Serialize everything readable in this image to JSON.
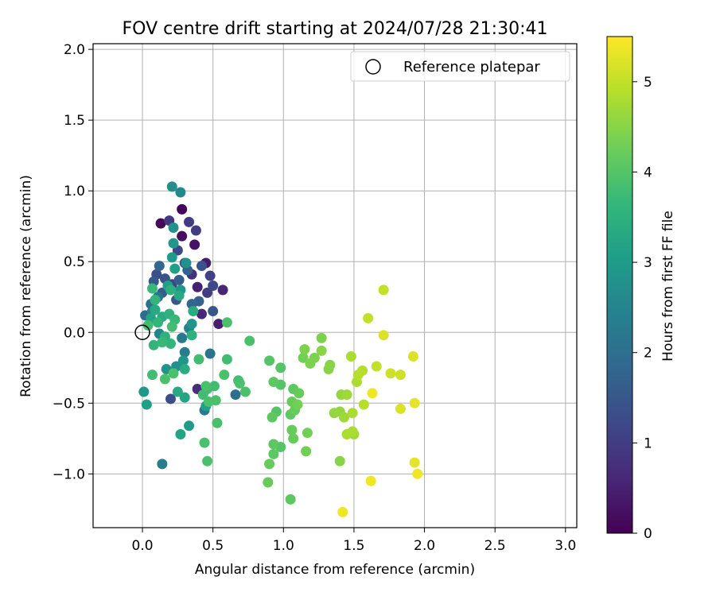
{
  "chart_data": {
    "type": "scatter",
    "title": "FOV centre drift starting at 2024/07/28 21:30:41",
    "xlabel": "Angular distance from reference (arcmin)",
    "ylabel": "Rotation from reference (arcmin)",
    "xlim": [
      -0.35,
      3.08
    ],
    "ylim": [
      -1.38,
      2.04
    ],
    "xticks": [
      0.0,
      0.5,
      1.0,
      1.5,
      2.0,
      2.5,
      3.0
    ],
    "xtick_labels": [
      "0.0",
      "0.5",
      "1.0",
      "1.5",
      "2.0",
      "2.5",
      "3.0"
    ],
    "yticks": [
      -1.0,
      -0.5,
      0.0,
      0.5,
      1.0,
      1.5,
      2.0
    ],
    "ytick_labels": [
      "−1.0",
      "−0.5",
      "0.0",
      "0.5",
      "1.0",
      "1.5",
      "2.0"
    ],
    "grid": true,
    "legend": {
      "position": "top-right",
      "entries": [
        {
          "label": "Reference platepar",
          "marker": "open-circle"
        }
      ]
    },
    "reference_point": {
      "x": 0.0,
      "y": 0.0
    },
    "colorbar": {
      "label": "Hours from first FF file",
      "colormap": "viridis",
      "range": [
        0,
        5.5
      ],
      "ticks": [
        0,
        1,
        2,
        3,
        4,
        5
      ],
      "tick_labels": [
        "0",
        "1",
        "2",
        "3",
        "4",
        "5"
      ],
      "colors": [
        "#440154",
        "#482878",
        "#3e4989",
        "#31688e",
        "#26828e",
        "#1f9e89",
        "#35b779",
        "#6ece58",
        "#b5de2b",
        "#fde725"
      ]
    },
    "points": [
      {
        "x": 0.28,
        "y": 0.87,
        "h": 0.05
      },
      {
        "x": 0.13,
        "y": 0.77,
        "h": 0.1
      },
      {
        "x": 0.28,
        "y": 0.68,
        "h": 0.2
      },
      {
        "x": 0.37,
        "y": 0.62,
        "h": 0.3
      },
      {
        "x": 0.45,
        "y": 0.49,
        "h": 0.4
      },
      {
        "x": 0.39,
        "y": 0.32,
        "h": 0.5
      },
      {
        "x": 0.57,
        "y": 0.3,
        "h": 0.6
      },
      {
        "x": 0.54,
        "y": 0.06,
        "h": 0.45
      },
      {
        "x": 0.42,
        "y": 0.13,
        "h": 0.6
      },
      {
        "x": 0.39,
        "y": -0.4,
        "h": 0.7
      },
      {
        "x": 0.35,
        "y": 0.41,
        "h": 0.8
      },
      {
        "x": 0.19,
        "y": 0.79,
        "h": 0.9
      },
      {
        "x": 0.33,
        "y": 0.78,
        "h": 1.0
      },
      {
        "x": 0.38,
        "y": 0.72,
        "h": 1.0
      },
      {
        "x": 0.48,
        "y": 0.4,
        "h": 1.1
      },
      {
        "x": 0.5,
        "y": 0.33,
        "h": 1.2
      },
      {
        "x": 0.46,
        "y": 0.28,
        "h": 1.0
      },
      {
        "x": 0.2,
        "y": -0.47,
        "h": 1.3
      },
      {
        "x": 0.25,
        "y": 0.58,
        "h": 1.2
      },
      {
        "x": 0.3,
        "y": 0.49,
        "h": 1.3
      },
      {
        "x": 0.16,
        "y": 0.38,
        "h": 1.4
      },
      {
        "x": 0.21,
        "y": 0.34,
        "h": 1.1
      },
      {
        "x": 0.08,
        "y": 0.36,
        "h": 1.5
      },
      {
        "x": 0.1,
        "y": 0.41,
        "h": 1.3
      },
      {
        "x": 0.14,
        "y": 0.28,
        "h": 1.6
      },
      {
        "x": 0.24,
        "y": 0.23,
        "h": 1.5
      },
      {
        "x": 0.26,
        "y": 0.37,
        "h": 1.6
      },
      {
        "x": 0.32,
        "y": 0.44,
        "h": 1.7
      },
      {
        "x": 0.42,
        "y": 0.47,
        "h": 1.4
      },
      {
        "x": 0.35,
        "y": 0.2,
        "h": 1.8
      },
      {
        "x": 0.4,
        "y": 0.22,
        "h": 1.7
      },
      {
        "x": 0.5,
        "y": 0.15,
        "h": 1.5
      },
      {
        "x": 0.02,
        "y": 0.12,
        "h": 1.9
      },
      {
        "x": 0.06,
        "y": 0.2,
        "h": 2.0
      },
      {
        "x": 0.11,
        "y": 0.25,
        "h": 2.1
      },
      {
        "x": 0.12,
        "y": 0.47,
        "h": 1.8
      },
      {
        "x": 0.48,
        "y": -0.15,
        "h": 2.1
      },
      {
        "x": 0.44,
        "y": -0.55,
        "h": 2.2
      },
      {
        "x": 0.66,
        "y": -0.44,
        "h": 2.0
      },
      {
        "x": 0.14,
        "y": -0.93,
        "h": 2.3
      },
      {
        "x": 0.28,
        "y": -0.04,
        "h": 2.2
      },
      {
        "x": 0.33,
        "y": 0.03,
        "h": 2.4
      },
      {
        "x": 0.3,
        "y": -0.14,
        "h": 2.3
      },
      {
        "x": 0.07,
        "y": 0.15,
        "h": 2.4
      },
      {
        "x": 0.12,
        "y": -0.01,
        "h": 2.5
      },
      {
        "x": 0.27,
        "y": 0.99,
        "h": 2.6
      },
      {
        "x": 0.21,
        "y": 1.03,
        "h": 2.7
      },
      {
        "x": 0.22,
        "y": 0.74,
        "h": 2.8
      },
      {
        "x": 0.22,
        "y": 0.63,
        "h": 2.9
      },
      {
        "x": 0.31,
        "y": 0.49,
        "h": 2.75
      },
      {
        "x": 0.21,
        "y": 0.53,
        "h": 3.0
      },
      {
        "x": 0.23,
        "y": 0.45,
        "h": 3.1
      },
      {
        "x": 0.18,
        "y": 0.33,
        "h": 3.1
      },
      {
        "x": 0.27,
        "y": 0.3,
        "h": 2.95
      },
      {
        "x": 0.35,
        "y": 0.06,
        "h": 2.85
      },
      {
        "x": 0.29,
        "y": -0.2,
        "h": 2.9
      },
      {
        "x": 0.17,
        "y": -0.26,
        "h": 2.8
      },
      {
        "x": 0.24,
        "y": -0.24,
        "h": 2.7
      },
      {
        "x": 0.01,
        "y": -0.42,
        "h": 2.9
      },
      {
        "x": 0.03,
        "y": -0.51,
        "h": 3.1
      },
      {
        "x": 0.27,
        "y": -0.72,
        "h": 3.2
      },
      {
        "x": 0.33,
        "y": -0.66,
        "h": 3.0
      },
      {
        "x": 0.45,
        "y": -0.52,
        "h": 3.1
      },
      {
        "x": 0.25,
        "y": -0.42,
        "h": 3.3
      },
      {
        "x": 0.3,
        "y": -0.46,
        "h": 3.2
      },
      {
        "x": 0.3,
        "y": -0.26,
        "h": 3.4
      },
      {
        "x": 0.06,
        "y": 0.1,
        "h": 3.2
      },
      {
        "x": 0.09,
        "y": 0.16,
        "h": 3.3
      },
      {
        "x": 0.14,
        "y": 0.11,
        "h": 3.4
      },
      {
        "x": 0.19,
        "y": 0.13,
        "h": 3.5
      },
      {
        "x": 0.11,
        "y": 0.07,
        "h": 3.6
      },
      {
        "x": 0.16,
        "y": -0.03,
        "h": 3.5
      },
      {
        "x": 0.08,
        "y": -0.09,
        "h": 3.6
      },
      {
        "x": 0.14,
        "y": -0.07,
        "h": 3.7
      },
      {
        "x": 0.2,
        "y": -0.08,
        "h": 3.6
      },
      {
        "x": 0.21,
        "y": 0.04,
        "h": 3.8
      },
      {
        "x": 0.23,
        "y": 0.09,
        "h": 3.7
      },
      {
        "x": 0.35,
        "y": -0.02,
        "h": 3.5
      },
      {
        "x": 0.07,
        "y": 0.31,
        "h": 3.7
      },
      {
        "x": 0.09,
        "y": 0.23,
        "h": 3.6
      },
      {
        "x": 0.04,
        "y": 0.05,
        "h": 3.8
      },
      {
        "x": 0.2,
        "y": 0.3,
        "h": 3.5
      },
      {
        "x": 0.26,
        "y": 0.26,
        "h": 3.3
      },
      {
        "x": 0.36,
        "y": 0.15,
        "h": 3.4
      },
      {
        "x": 0.07,
        "y": -0.3,
        "h": 3.8
      },
      {
        "x": 0.16,
        "y": -0.33,
        "h": 3.9
      },
      {
        "x": 0.22,
        "y": -0.29,
        "h": 3.9
      },
      {
        "x": 0.4,
        "y": -0.19,
        "h": 3.8
      },
      {
        "x": 0.44,
        "y": -0.78,
        "h": 3.9
      },
      {
        "x": 0.46,
        "y": -0.91,
        "h": 3.9
      },
      {
        "x": 0.6,
        "y": 0.07,
        "h": 3.9
      },
      {
        "x": 0.6,
        "y": -0.19,
        "h": 3.8
      },
      {
        "x": 0.58,
        "y": -0.3,
        "h": 3.9
      },
      {
        "x": 0.68,
        "y": -0.34,
        "h": 3.8
      },
      {
        "x": 0.69,
        "y": -0.36,
        "h": 3.9
      },
      {
        "x": 0.73,
        "y": -0.42,
        "h": 3.9
      },
      {
        "x": 0.76,
        "y": -0.06,
        "h": 3.9
      },
      {
        "x": 0.45,
        "y": -0.38,
        "h": 3.9
      },
      {
        "x": 0.51,
        "y": -0.38,
        "h": 3.8
      },
      {
        "x": 0.47,
        "y": -0.49,
        "h": 3.9
      },
      {
        "x": 0.52,
        "y": -0.48,
        "h": 3.9
      },
      {
        "x": 0.53,
        "y": -0.64,
        "h": 3.9
      },
      {
        "x": 0.46,
        "y": -0.4,
        "h": 3.8
      },
      {
        "x": 0.43,
        "y": -0.44,
        "h": 3.8
      },
      {
        "x": 0.9,
        "y": -0.2,
        "h": 4.0
      },
      {
        "x": 0.98,
        "y": -0.25,
        "h": 4.0
      },
      {
        "x": 0.93,
        "y": -0.35,
        "h": 4.1
      },
      {
        "x": 0.98,
        "y": -0.37,
        "h": 4.0
      },
      {
        "x": 0.92,
        "y": -0.6,
        "h": 4.1
      },
      {
        "x": 0.95,
        "y": -0.56,
        "h": 4.0
      },
      {
        "x": 0.93,
        "y": -0.79,
        "h": 4.1
      },
      {
        "x": 0.98,
        "y": -0.81,
        "h": 4.0
      },
      {
        "x": 0.9,
        "y": -0.93,
        "h": 4.2
      },
      {
        "x": 0.93,
        "y": -0.86,
        "h": 4.1
      },
      {
        "x": 0.89,
        "y": -1.06,
        "h": 4.2
      },
      {
        "x": 1.05,
        "y": -1.18,
        "h": 4.1
      },
      {
        "x": 1.06,
        "y": -0.69,
        "h": 4.2
      },
      {
        "x": 1.07,
        "y": -0.75,
        "h": 4.2
      },
      {
        "x": 1.05,
        "y": -0.58,
        "h": 4.1
      },
      {
        "x": 1.08,
        "y": -0.55,
        "h": 4.2
      },
      {
        "x": 1.06,
        "y": -0.49,
        "h": 4.2
      },
      {
        "x": 1.07,
        "y": -0.4,
        "h": 4.1
      },
      {
        "x": 1.11,
        "y": -0.43,
        "h": 4.2
      },
      {
        "x": 1.1,
        "y": -0.51,
        "h": 4.3
      },
      {
        "x": 1.16,
        "y": -0.84,
        "h": 4.3
      },
      {
        "x": 1.17,
        "y": -0.71,
        "h": 4.3
      },
      {
        "x": 1.15,
        "y": -0.12,
        "h": 4.4
      },
      {
        "x": 1.14,
        "y": -0.18,
        "h": 4.3
      },
      {
        "x": 1.19,
        "y": -0.22,
        "h": 4.4
      },
      {
        "x": 1.22,
        "y": -0.18,
        "h": 4.4
      },
      {
        "x": 1.27,
        "y": -0.04,
        "h": 4.4
      },
      {
        "x": 1.27,
        "y": -0.13,
        "h": 4.5
      },
      {
        "x": 1.32,
        "y": -0.26,
        "h": 4.5
      },
      {
        "x": 1.33,
        "y": -0.23,
        "h": 4.5
      },
      {
        "x": 1.36,
        "y": -0.57,
        "h": 4.6
      },
      {
        "x": 1.4,
        "y": -0.56,
        "h": 4.6
      },
      {
        "x": 1.4,
        "y": -0.91,
        "h": 4.5
      },
      {
        "x": 1.41,
        "y": -0.44,
        "h": 4.6
      },
      {
        "x": 1.43,
        "y": -0.6,
        "h": 4.7
      },
      {
        "x": 1.45,
        "y": -0.44,
        "h": 4.7
      },
      {
        "x": 1.45,
        "y": -0.72,
        "h": 4.8
      },
      {
        "x": 1.49,
        "y": -0.7,
        "h": 4.8
      },
      {
        "x": 1.5,
        "y": -0.72,
        "h": 4.7
      },
      {
        "x": 1.48,
        "y": -0.17,
        "h": 4.8
      },
      {
        "x": 1.49,
        "y": -0.57,
        "h": 4.8
      },
      {
        "x": 1.52,
        "y": -0.35,
        "h": 4.8
      },
      {
        "x": 1.53,
        "y": -0.3,
        "h": 4.9
      },
      {
        "x": 1.56,
        "y": -0.27,
        "h": 4.9
      },
      {
        "x": 1.57,
        "y": -0.51,
        "h": 4.9
      },
      {
        "x": 1.6,
        "y": 0.1,
        "h": 5.0
      },
      {
        "x": 1.66,
        "y": -0.24,
        "h": 5.0
      },
      {
        "x": 1.71,
        "y": 0.3,
        "h": 5.0
      },
      {
        "x": 1.71,
        "y": -0.02,
        "h": 5.2
      },
      {
        "x": 1.76,
        "y": -0.29,
        "h": 5.1
      },
      {
        "x": 1.83,
        "y": -0.3,
        "h": 5.1
      },
      {
        "x": 1.83,
        "y": -0.54,
        "h": 5.2
      },
      {
        "x": 1.92,
        "y": -0.17,
        "h": 5.2
      },
      {
        "x": 1.93,
        "y": -0.5,
        "h": 5.3
      },
      {
        "x": 1.93,
        "y": -0.92,
        "h": 5.3
      },
      {
        "x": 1.95,
        "y": -1.0,
        "h": 5.4
      },
      {
        "x": 1.62,
        "y": -1.05,
        "h": 5.4
      },
      {
        "x": 1.42,
        "y": -1.27,
        "h": 5.4
      },
      {
        "x": 1.63,
        "y": -0.43,
        "h": 5.4
      }
    ]
  }
}
